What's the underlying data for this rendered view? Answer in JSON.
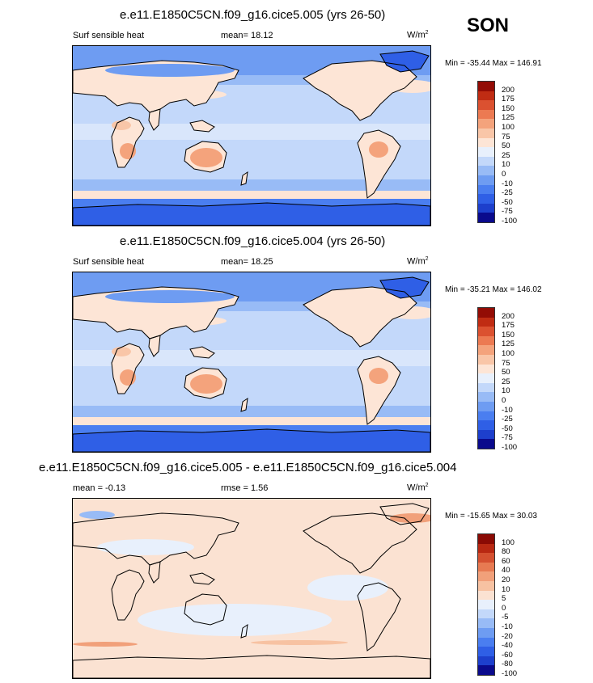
{
  "season": "SON",
  "panels": [
    {
      "title": "e.e11.E1850C5CN.f09_g16.cice5.005 (yrs 26-50)",
      "left_label": "Surf sensible heat",
      "center_label": "mean=  18.12",
      "units": "W/m",
      "units_sup": "2",
      "minmax": "Min = -35.44 Max = 146.91",
      "cbar_levels": [
        "200",
        "175",
        "150",
        "125",
        "100",
        "75",
        "50",
        "25",
        "10",
        "0",
        "-10",
        "-25",
        "-50",
        "-75",
        "-100"
      ]
    },
    {
      "title": "e.e11.E1850C5CN.f09_g16.cice5.004 (yrs 26-50)",
      "left_label": "Surf sensible heat",
      "center_label": "mean=  18.25",
      "units": "W/m",
      "units_sup": "2",
      "minmax": "Min = -35.21 Max = 146.02",
      "cbar_levels": [
        "200",
        "175",
        "150",
        "125",
        "100",
        "75",
        "50",
        "25",
        "10",
        "0",
        "-10",
        "-25",
        "-50",
        "-75",
        "-100"
      ]
    },
    {
      "title": "e.e11.E1850C5CN.f09_g16.cice5.005 - e.e11.E1850C5CN.f09_g16.cice5.004",
      "left_label": "mean =  -0.13",
      "center_label": "rmse =   1.56",
      "units": "W/m",
      "units_sup": "2",
      "minmax": "Min = -15.65 Max =  30.03",
      "cbar_levels": [
        "100",
        "80",
        "60",
        "40",
        "20",
        "10",
        "5",
        "0",
        "-5",
        "-10",
        "-20",
        "-40",
        "-60",
        "-80",
        "-100"
      ]
    }
  ],
  "colors": {
    "palette": [
      "#0a0a8c",
      "#1d3fcc",
      "#2f5fe6",
      "#4a7ef0",
      "#6e9cf2",
      "#98bbf6",
      "#c3d8fa",
      "#e8f0fc",
      "#fde5d6",
      "#f9c6a8",
      "#f4a37c",
      "#ec7a52",
      "#db5130",
      "#c02c13",
      "#930c05"
    ],
    "diff_palette": [
      "#0a0a8c",
      "#1d3fcc",
      "#2f5fe6",
      "#4a7ef0",
      "#6e9cf2",
      "#98bbf6",
      "#c3d8fa",
      "#e8f0fc",
      "#fbe2d2",
      "#f7c2a2",
      "#f1a07a",
      "#e77a52",
      "#d45030",
      "#b82812",
      "#8a0a04"
    ]
  },
  "chart_data": [
    {
      "type": "heatmap",
      "subtype": "global filled-contour map",
      "title": "e.e11.E1850C5CN.f09_g16.cice5.005 (yrs 26-50)",
      "variable": "Surf sensible heat",
      "units": "W/m2",
      "mean": 18.12,
      "min": -35.44,
      "max": 146.91,
      "contour_levels": [
        -100,
        -75,
        -50,
        -25,
        -10,
        0,
        10,
        25,
        50,
        75,
        100,
        125,
        150,
        175,
        200
      ]
    },
    {
      "type": "heatmap",
      "subtype": "global filled-contour map",
      "title": "e.e11.E1850C5CN.f09_g16.cice5.004 (yrs 26-50)",
      "variable": "Surf sensible heat",
      "units": "W/m2",
      "mean": 18.25,
      "min": -35.21,
      "max": 146.02,
      "contour_levels": [
        -100,
        -75,
        -50,
        -25,
        -10,
        0,
        10,
        25,
        50,
        75,
        100,
        125,
        150,
        175,
        200
      ]
    },
    {
      "type": "heatmap",
      "subtype": "global filled-contour difference map",
      "title": "e.e11.E1850C5CN.f09_g16.cice5.005 - e.e11.E1850C5CN.f09_g16.cice5.004",
      "units": "W/m2",
      "mean": -0.13,
      "rmse": 1.56,
      "min": -15.65,
      "max": 30.03,
      "contour_levels": [
        -100,
        -80,
        -60,
        -40,
        -20,
        -10,
        -5,
        0,
        5,
        10,
        20,
        40,
        60,
        80,
        100
      ]
    }
  ]
}
